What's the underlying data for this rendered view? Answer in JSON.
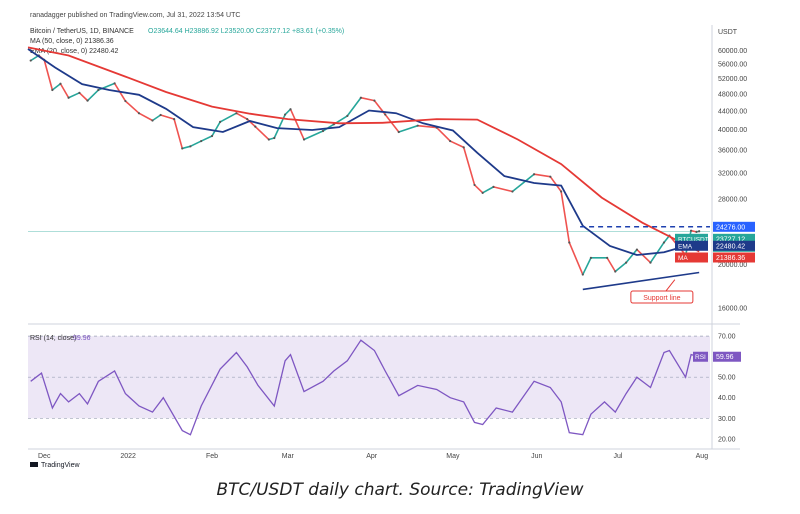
{
  "header": {
    "published": "ranadagger published on TradingView.com, Jul 31, 2022 13:54 UTC",
    "symbol_line": "Bitcoin / TetherUS, 1D, BINANCE",
    "ohlc": "O23644.64 H23886.92 L23520.00 C23727.12 +83.61 (+0.35%)",
    "ma_line": "MA (50, close, 0)  21386.36",
    "ema_line": "EMA (20, close, 0)  22480.42"
  },
  "chart_data": {
    "type": "line",
    "title": "Bitcoin / TetherUS, 1D, BINANCE",
    "currency_label": "USDT",
    "price_scale": "log",
    "y_ticks": [
      16000,
      20000,
      24000,
      28000,
      32000,
      36000,
      40000,
      44000,
      48000,
      52000,
      56000,
      60000
    ],
    "x_ticks": [
      "Dec",
      "2022",
      "Feb",
      "Mar",
      "Apr",
      "May",
      "Jun",
      "Jul",
      "Aug"
    ],
    "x_range": [
      "2021-11-25",
      "2022-08-04"
    ],
    "ylim": [
      15200,
      64000
    ],
    "grid": false,
    "series": [
      {
        "name": "BTCUSDT",
        "color": "#26a69a",
        "down_color": "#ef5350",
        "points": [
          [
            "2021-11-26",
            57000
          ],
          [
            "2021-11-29",
            58500
          ],
          [
            "2021-12-01",
            57200
          ],
          [
            "2021-12-04",
            49000
          ],
          [
            "2021-12-07",
            50600
          ],
          [
            "2021-12-10",
            47100
          ],
          [
            "2021-12-14",
            48300
          ],
          [
            "2021-12-17",
            46400
          ],
          [
            "2021-12-21",
            49000
          ],
          [
            "2021-12-27",
            50700
          ],
          [
            "2021-12-31",
            46300
          ],
          [
            "2022-01-05",
            43500
          ],
          [
            "2022-01-10",
            41900
          ],
          [
            "2022-01-13",
            43100
          ],
          [
            "2022-01-18",
            42200
          ],
          [
            "2022-01-21",
            36300
          ],
          [
            "2022-01-24",
            36700
          ],
          [
            "2022-01-28",
            37700
          ],
          [
            "2022-02-01",
            38700
          ],
          [
            "2022-02-04",
            41600
          ],
          [
            "2022-02-10",
            43500
          ],
          [
            "2022-02-14",
            42200
          ],
          [
            "2022-02-17",
            40600
          ],
          [
            "2022-02-22",
            38000
          ],
          [
            "2022-02-24",
            38300
          ],
          [
            "2022-02-28",
            43200
          ],
          [
            "2022-03-02",
            44400
          ],
          [
            "2022-03-07",
            38000
          ],
          [
            "2022-03-14",
            39700
          ],
          [
            "2022-03-18",
            41100
          ],
          [
            "2022-03-23",
            42900
          ],
          [
            "2022-03-28",
            47100
          ],
          [
            "2022-04-02",
            46400
          ],
          [
            "2022-04-06",
            43200
          ],
          [
            "2022-04-11",
            39500
          ],
          [
            "2022-04-18",
            40800
          ],
          [
            "2022-04-25",
            40400
          ],
          [
            "2022-04-30",
            37700
          ],
          [
            "2022-05-05",
            36500
          ],
          [
            "2022-05-09",
            30100
          ],
          [
            "2022-05-12",
            28900
          ],
          [
            "2022-05-16",
            29800
          ],
          [
            "2022-05-23",
            29100
          ],
          [
            "2022-05-31",
            31800
          ],
          [
            "2022-06-06",
            31400
          ],
          [
            "2022-06-10",
            29100
          ],
          [
            "2022-06-13",
            22400
          ],
          [
            "2022-06-18",
            19000
          ],
          [
            "2022-06-21",
            20700
          ],
          [
            "2022-06-27",
            20700
          ],
          [
            "2022-06-30",
            19300
          ],
          [
            "2022-07-04",
            20200
          ],
          [
            "2022-07-08",
            21600
          ],
          [
            "2022-07-13",
            20200
          ],
          [
            "2022-07-18",
            22400
          ],
          [
            "2022-07-20",
            23200
          ],
          [
            "2022-07-26",
            21000
          ],
          [
            "2022-07-28",
            23800
          ],
          [
            "2022-07-30",
            23650
          ],
          [
            "2022-07-31",
            23727
          ]
        ]
      },
      {
        "name": "EMA (20, close, 0)",
        "color": "#1e3a8a",
        "points": [
          [
            "2021-11-25",
            60500
          ],
          [
            "2021-12-05",
            55000
          ],
          [
            "2021-12-15",
            50500
          ],
          [
            "2021-12-25",
            49000
          ],
          [
            "2022-01-05",
            47800
          ],
          [
            "2022-01-15",
            44500
          ],
          [
            "2022-01-25",
            40500
          ],
          [
            "2022-02-05",
            39500
          ],
          [
            "2022-02-15",
            41800
          ],
          [
            "2022-02-25",
            40300
          ],
          [
            "2022-03-10",
            39900
          ],
          [
            "2022-03-20",
            40500
          ],
          [
            "2022-03-31",
            44100
          ],
          [
            "2022-04-10",
            43500
          ],
          [
            "2022-04-20",
            41300
          ],
          [
            "2022-05-01",
            39800
          ],
          [
            "2022-05-10",
            35500
          ],
          [
            "2022-05-20",
            31500
          ],
          [
            "2022-05-31",
            30400
          ],
          [
            "2022-06-10",
            30000
          ],
          [
            "2022-06-18",
            24400
          ],
          [
            "2022-06-28",
            22000
          ],
          [
            "2022-07-08",
            21000
          ],
          [
            "2022-07-18",
            21300
          ],
          [
            "2022-07-26",
            22000
          ],
          [
            "2022-07-31",
            22480
          ]
        ]
      },
      {
        "name": "MA (50, close, 0)",
        "color": "#e53935",
        "points": [
          [
            "2021-11-25",
            61000
          ],
          [
            "2021-12-10",
            58500
          ],
          [
            "2021-12-31",
            52500
          ],
          [
            "2022-01-15",
            48500
          ],
          [
            "2022-02-01",
            45000
          ],
          [
            "2022-02-15",
            43400
          ],
          [
            "2022-03-01",
            42200
          ],
          [
            "2022-03-20",
            41300
          ],
          [
            "2022-04-05",
            41400
          ],
          [
            "2022-04-25",
            42200
          ],
          [
            "2022-05-10",
            42100
          ],
          [
            "2022-05-25",
            38000
          ],
          [
            "2022-06-10",
            33500
          ],
          [
            "2022-06-25",
            28200
          ],
          [
            "2022-07-10",
            24800
          ],
          [
            "2022-07-31",
            21386
          ]
        ]
      }
    ],
    "annotations": {
      "resistance_label": "24276.00",
      "resistance_value": 24276,
      "support_label": "Support line",
      "support_line": [
        [
          "2022-06-18",
          17600
        ],
        [
          "2022-07-31",
          19200
        ]
      ]
    },
    "price_tags": [
      {
        "label": "BTCUSDT",
        "value": "23727.12",
        "sub": "10:05:21",
        "color": "#26a69a"
      },
      {
        "label": "EMA",
        "value": "22480.42",
        "color": "#1e3a8a"
      },
      {
        "label": "MA",
        "value": "21386.36",
        "color": "#e53935"
      }
    ],
    "rsi": {
      "label": "RSI (14, close)",
      "value_label": "59.96",
      "color": "#7e57c2",
      "band_color": "#ede7f6",
      "y_ticks": [
        20,
        30,
        40,
        50,
        60,
        70
      ],
      "ylim": [
        17,
        72
      ],
      "levels": [
        30,
        50,
        70
      ],
      "points": [
        [
          "2021-11-26",
          48
        ],
        [
          "2021-11-30",
          52
        ],
        [
          "2021-12-04",
          35
        ],
        [
          "2021-12-07",
          42
        ],
        [
          "2021-12-10",
          38
        ],
        [
          "2021-12-14",
          42
        ],
        [
          "2021-12-17",
          37
        ],
        [
          "2021-12-21",
          48
        ],
        [
          "2021-12-27",
          53
        ],
        [
          "2021-12-31",
          42
        ],
        [
          "2022-01-05",
          36
        ],
        [
          "2022-01-10",
          33
        ],
        [
          "2022-01-14",
          40
        ],
        [
          "2022-01-21",
          24
        ],
        [
          "2022-01-24",
          22
        ],
        [
          "2022-01-28",
          36
        ],
        [
          "2022-02-04",
          54
        ],
        [
          "2022-02-10",
          62
        ],
        [
          "2022-02-14",
          55
        ],
        [
          "2022-02-18",
          46
        ],
        [
          "2022-02-24",
          36
        ],
        [
          "2022-02-28",
          58
        ],
        [
          "2022-03-02",
          61
        ],
        [
          "2022-03-07",
          43
        ],
        [
          "2022-03-14",
          48
        ],
        [
          "2022-03-18",
          53
        ],
        [
          "2022-03-23",
          58
        ],
        [
          "2022-03-28",
          68
        ],
        [
          "2022-04-02",
          63
        ],
        [
          "2022-04-06",
          53
        ],
        [
          "2022-04-11",
          41
        ],
        [
          "2022-04-18",
          46
        ],
        [
          "2022-04-25",
          44
        ],
        [
          "2022-04-30",
          40
        ],
        [
          "2022-05-05",
          38
        ],
        [
          "2022-05-09",
          28
        ],
        [
          "2022-05-12",
          27
        ],
        [
          "2022-05-17",
          35
        ],
        [
          "2022-05-23",
          33
        ],
        [
          "2022-05-31",
          48
        ],
        [
          "2022-06-06",
          45
        ],
        [
          "2022-06-10",
          38
        ],
        [
          "2022-06-13",
          23
        ],
        [
          "2022-06-18",
          22
        ],
        [
          "2022-06-21",
          32
        ],
        [
          "2022-06-26",
          38
        ],
        [
          "2022-06-30",
          33
        ],
        [
          "2022-07-04",
          42
        ],
        [
          "2022-07-08",
          50
        ],
        [
          "2022-07-13",
          45
        ],
        [
          "2022-07-18",
          62
        ],
        [
          "2022-07-20",
          63
        ],
        [
          "2022-07-26",
          50
        ],
        [
          "2022-07-28",
          61
        ],
        [
          "2022-07-31",
          59.96
        ]
      ]
    }
  },
  "footer": {
    "logo_text": "TradingView",
    "caption": "BTC/USDT daily chart. Source: TradingView"
  }
}
